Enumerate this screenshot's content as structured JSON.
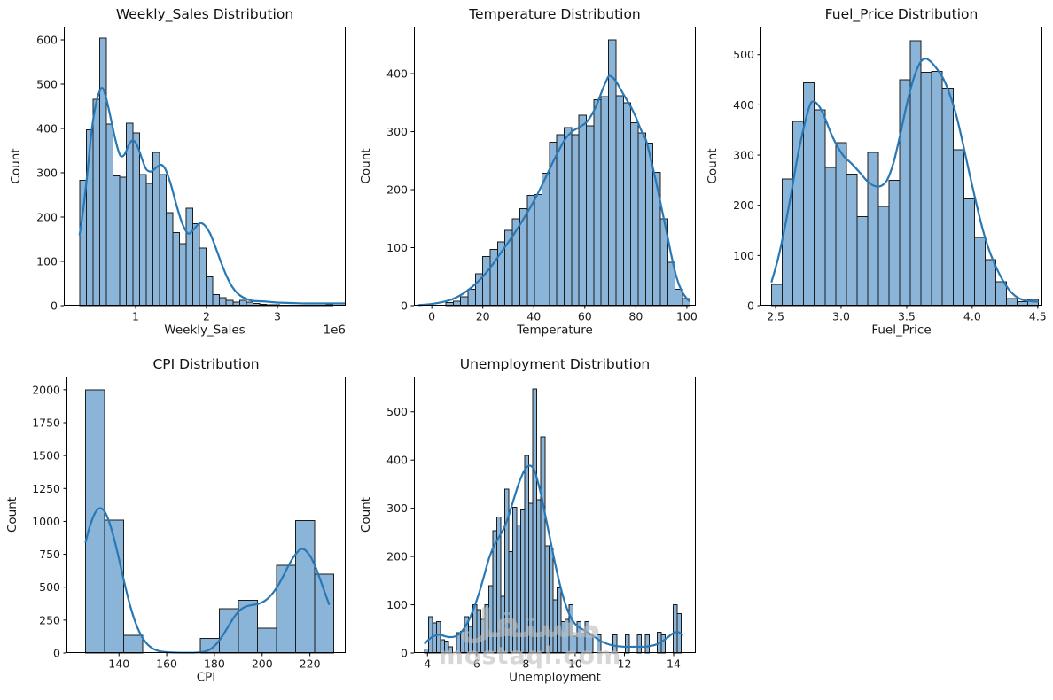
{
  "figure": {
    "background": "#ffffff"
  },
  "colors": {
    "bar_fill": "#8ab4d8",
    "bar_edge": "#1b1b1b",
    "kde": "#2878b5",
    "spine": "#000000",
    "text": "#1a1a1a"
  },
  "watermark": {
    "line1": "مستقل",
    "line2": "mostaql.com"
  },
  "chart_data": [
    {
      "id": "weekly-sales",
      "type": "bar",
      "subtype": "histogram-with-kde",
      "title": "Weekly_Sales Distribution",
      "xlabel": "Weekly_Sales",
      "ylabel": "Count",
      "x_offset_label": "1e6",
      "grid": false,
      "legend": null,
      "xlim": [
        -0.0125,
        3.9625
      ],
      "ylim": [
        0,
        630
      ],
      "xticks": {
        "values": [
          1,
          2,
          3
        ],
        "labels": [
          "1",
          "2",
          "3"
        ]
      },
      "yticks": {
        "values": [
          0,
          100,
          200,
          300,
          400,
          500,
          600
        ],
        "labels": [
          "0",
          "100",
          "200",
          "300",
          "400",
          "500",
          "600"
        ]
      },
      "bins": {
        "start": 0.21,
        "width": 0.094
      },
      "values": [
        283,
        397,
        466,
        604,
        410,
        293,
        290,
        412,
        390,
        296,
        276,
        346,
        296,
        210,
        165,
        140,
        220,
        185,
        130,
        65,
        25,
        18,
        12,
        8,
        12,
        8,
        5,
        3,
        2,
        2,
        1,
        1,
        1,
        1,
        1,
        1,
        1,
        2
      ],
      "kde": [
        [
          0.21,
          160
        ],
        [
          0.26,
          215
        ],
        [
          0.32,
          300
        ],
        [
          0.38,
          395
        ],
        [
          0.44,
          455
        ],
        [
          0.5,
          487
        ],
        [
          0.54,
          490
        ],
        [
          0.58,
          472
        ],
        [
          0.64,
          430
        ],
        [
          0.7,
          385
        ],
        [
          0.76,
          348
        ],
        [
          0.8,
          337
        ],
        [
          0.85,
          343
        ],
        [
          0.9,
          362
        ],
        [
          0.95,
          373
        ],
        [
          1.0,
          368
        ],
        [
          1.05,
          350
        ],
        [
          1.1,
          327
        ],
        [
          1.15,
          308
        ],
        [
          1.22,
          303
        ],
        [
          1.3,
          313
        ],
        [
          1.36,
          318
        ],
        [
          1.42,
          308
        ],
        [
          1.5,
          272
        ],
        [
          1.58,
          225
        ],
        [
          1.66,
          185
        ],
        [
          1.74,
          163
        ],
        [
          1.82,
          172
        ],
        [
          1.9,
          186
        ],
        [
          1.97,
          182
        ],
        [
          2.05,
          163
        ],
        [
          2.12,
          135
        ],
        [
          2.2,
          100
        ],
        [
          2.28,
          68
        ],
        [
          2.36,
          43
        ],
        [
          2.45,
          26
        ],
        [
          2.55,
          16
        ],
        [
          2.65,
          11
        ],
        [
          2.75,
          10
        ],
        [
          2.85,
          9
        ],
        [
          3.0,
          7
        ],
        [
          3.2,
          6
        ],
        [
          3.4,
          5
        ],
        [
          3.6,
          5
        ],
        [
          3.8,
          5
        ],
        [
          3.95,
          5
        ]
      ]
    },
    {
      "id": "temperature",
      "type": "bar",
      "subtype": "histogram-with-kde",
      "title": "Temperature Distribution",
      "xlabel": "Temperature",
      "ylabel": "Count",
      "x_offset_label": null,
      "grid": false,
      "legend": null,
      "xlim": [
        -7,
        103.5
      ],
      "ylim": [
        0,
        481
      ],
      "xticks": {
        "values": [
          0,
          20,
          40,
          60,
          80,
          100
        ],
        "labels": [
          "0",
          "20",
          "40",
          "60",
          "80",
          "100"
        ]
      },
      "yticks": {
        "values": [
          0,
          100,
          200,
          300,
          400
        ],
        "labels": [
          "0",
          "100",
          "200",
          "300",
          "400"
        ]
      },
      "bins": {
        "start": 5.5,
        "width": 2.9
      },
      "values": [
        5,
        8,
        15,
        28,
        55,
        85,
        97,
        110,
        130,
        150,
        167,
        190,
        192,
        228,
        282,
        295,
        307,
        295,
        328,
        310,
        355,
        360,
        458,
        362,
        350,
        315,
        298,
        280,
        230,
        150,
        75,
        28,
        12
      ],
      "kde": [
        [
          -5,
          1
        ],
        [
          0,
          3
        ],
        [
          4,
          6
        ],
        [
          8,
          11
        ],
        [
          12,
          20
        ],
        [
          16,
          33
        ],
        [
          20,
          50
        ],
        [
          24,
          72
        ],
        [
          28,
          97
        ],
        [
          32,
          122
        ],
        [
          36,
          150
        ],
        [
          40,
          180
        ],
        [
          44,
          215
        ],
        [
          48,
          252
        ],
        [
          52,
          285
        ],
        [
          55,
          300
        ],
        [
          58,
          308
        ],
        [
          61,
          318
        ],
        [
          64,
          340
        ],
        [
          67,
          373
        ],
        [
          69,
          393
        ],
        [
          70,
          396
        ],
        [
          72,
          388
        ],
        [
          74,
          373
        ],
        [
          76,
          358
        ],
        [
          78,
          343
        ],
        [
          80,
          325
        ],
        [
          82,
          303
        ],
        [
          84,
          285
        ],
        [
          86,
          250
        ],
        [
          88,
          212
        ],
        [
          90,
          170
        ],
        [
          92,
          128
        ],
        [
          94,
          85
        ],
        [
          96,
          48
        ],
        [
          98,
          25
        ],
        [
          100,
          12
        ],
        [
          101,
          8
        ]
      ]
    },
    {
      "id": "fuel-price",
      "type": "bar",
      "subtype": "histogram-with-kde",
      "title": "Fuel_Price Distribution",
      "xlabel": "Fuel_Price",
      "ylabel": "Count",
      "x_offset_label": null,
      "grid": false,
      "legend": null,
      "xlim": [
        2.385,
        4.535
      ],
      "ylim": [
        0,
        556
      ],
      "xticks": {
        "values": [
          2.5,
          3.0,
          3.5,
          4.0,
          4.5
        ],
        "labels": [
          "2.5",
          "3.0",
          "3.5",
          "4.0",
          "4.5"
        ]
      },
      "yticks": {
        "values": [
          0,
          100,
          200,
          300,
          400,
          500
        ],
        "labels": [
          "0",
          "100",
          "200",
          "300",
          "400",
          "500"
        ]
      },
      "bins": {
        "start": 2.47,
        "width": 0.0814
      },
      "values": [
        42,
        252,
        367,
        444,
        390,
        275,
        325,
        262,
        177,
        305,
        198,
        250,
        450,
        528,
        465,
        467,
        433,
        311,
        213,
        136,
        92,
        48,
        14,
        8,
        12
      ],
      "kde": [
        [
          2.47,
          48
        ],
        [
          2.52,
          95
        ],
        [
          2.57,
          155
        ],
        [
          2.62,
          225
        ],
        [
          2.67,
          300
        ],
        [
          2.72,
          360
        ],
        [
          2.76,
          398
        ],
        [
          2.79,
          407
        ],
        [
          2.83,
          398
        ],
        [
          2.87,
          378
        ],
        [
          2.92,
          345
        ],
        [
          2.97,
          318
        ],
        [
          3.02,
          298
        ],
        [
          3.08,
          283
        ],
        [
          3.14,
          266
        ],
        [
          3.2,
          248
        ],
        [
          3.25,
          239
        ],
        [
          3.3,
          238
        ],
        [
          3.35,
          250
        ],
        [
          3.4,
          285
        ],
        [
          3.45,
          340
        ],
        [
          3.5,
          400
        ],
        [
          3.55,
          450
        ],
        [
          3.6,
          483
        ],
        [
          3.64,
          492
        ],
        [
          3.68,
          487
        ],
        [
          3.73,
          472
        ],
        [
          3.78,
          452
        ],
        [
          3.83,
          420
        ],
        [
          3.88,
          378
        ],
        [
          3.93,
          322
        ],
        [
          3.98,
          262
        ],
        [
          4.03,
          205
        ],
        [
          4.08,
          152
        ],
        [
          4.13,
          110
        ],
        [
          4.18,
          78
        ],
        [
          4.23,
          52
        ],
        [
          4.28,
          32
        ],
        [
          4.33,
          19
        ],
        [
          4.38,
          12
        ],
        [
          4.44,
          9
        ],
        [
          4.5,
          8
        ]
      ]
    },
    {
      "id": "cpi",
      "type": "bar",
      "subtype": "histogram-with-kde",
      "title": "CPI Distribution",
      "xlabel": "CPI",
      "ylabel": "Count",
      "x_offset_label": null,
      "grid": false,
      "legend": null,
      "xlim": [
        118,
        235
      ],
      "ylim": [
        0,
        2100
      ],
      "xticks": {
        "values": [
          140,
          160,
          180,
          200,
          220
        ],
        "labels": [
          "140",
          "160",
          "180",
          "200",
          "220"
        ]
      },
      "yticks": {
        "values": [
          0,
          250,
          500,
          750,
          1000,
          1250,
          1500,
          1750,
          2000
        ],
        "labels": [
          "0",
          "250",
          "500",
          "750",
          "1000",
          "1250",
          "1500",
          "1750",
          "2000"
        ]
      },
      "bins": {
        "start": 126,
        "width": 8
      },
      "values": [
        2000,
        1010,
        135,
        0,
        0,
        0,
        110,
        335,
        400,
        190,
        665,
        1005,
        600
      ],
      "kde": [
        [
          126,
          845
        ],
        [
          128,
          975
        ],
        [
          130,
          1065
        ],
        [
          132,
          1100
        ],
        [
          134,
          1075
        ],
        [
          136,
          990
        ],
        [
          138,
          865
        ],
        [
          140,
          715
        ],
        [
          142,
          555
        ],
        [
          144,
          405
        ],
        [
          146,
          280
        ],
        [
          148,
          182
        ],
        [
          150,
          112
        ],
        [
          152,
          65
        ],
        [
          154,
          36
        ],
        [
          156,
          19
        ],
        [
          158,
          10
        ],
        [
          161,
          5
        ],
        [
          164,
          3
        ],
        [
          168,
          2
        ],
        [
          172,
          3
        ],
        [
          175,
          8
        ],
        [
          177,
          18
        ],
        [
          179,
          38
        ],
        [
          181,
          72
        ],
        [
          183,
          120
        ],
        [
          185,
          178
        ],
        [
          187,
          238
        ],
        [
          189,
          292
        ],
        [
          191,
          330
        ],
        [
          193,
          352
        ],
        [
          195,
          362
        ],
        [
          197,
          368
        ],
        [
          199,
          377
        ],
        [
          201,
          395
        ],
        [
          203,
          425
        ],
        [
          205,
          468
        ],
        [
          207,
          523
        ],
        [
          209,
          590
        ],
        [
          211,
          662
        ],
        [
          213,
          725
        ],
        [
          215,
          772
        ],
        [
          216,
          788
        ],
        [
          217,
          790
        ],
        [
          218,
          783
        ],
        [
          220,
          740
        ],
        [
          222,
          668
        ],
        [
          224,
          575
        ],
        [
          226,
          472
        ],
        [
          228,
          372
        ]
      ]
    },
    {
      "id": "unemployment",
      "type": "bar",
      "subtype": "histogram-with-kde",
      "title": "Unemployment Distribution",
      "xlabel": "Unemployment",
      "ylabel": "Count",
      "x_offset_label": null,
      "grid": false,
      "legend": null,
      "xlim": [
        3.45,
        14.9
      ],
      "ylim": [
        0,
        573
      ],
      "xticks": {
        "values": [
          4,
          6,
          8,
          10,
          12,
          14
        ],
        "labels": [
          "4",
          "6",
          "8",
          "10",
          "12",
          "14"
        ]
      },
      "yticks": {
        "values": [
          0,
          100,
          200,
          300,
          400,
          500
        ],
        "labels": [
          "0",
          "100",
          "200",
          "300",
          "400",
          "500"
        ]
      },
      "bins": {
        "start": 3.88,
        "width": 0.163
      },
      "values": [
        8,
        75,
        62,
        65,
        28,
        25,
        13,
        0,
        42,
        45,
        75,
        55,
        100,
        90,
        70,
        100,
        140,
        253,
        282,
        118,
        340,
        210,
        302,
        265,
        297,
        410,
        310,
        547,
        318,
        448,
        222,
        218,
        110,
        135,
        65,
        70,
        100,
        35,
        65,
        40,
        65,
        38,
        0,
        38,
        0,
        0,
        0,
        38,
        0,
        0,
        38,
        0,
        0,
        38,
        0,
        38,
        0,
        0,
        43,
        38,
        0,
        0,
        100,
        82
      ],
      "kde": [
        [
          3.9,
          20
        ],
        [
          4.1,
          30
        ],
        [
          4.3,
          36
        ],
        [
          4.5,
          38
        ],
        [
          4.7,
          35
        ],
        [
          4.9,
          33
        ],
        [
          5.1,
          34
        ],
        [
          5.3,
          40
        ],
        [
          5.5,
          52
        ],
        [
          5.7,
          70
        ],
        [
          5.9,
          95
        ],
        [
          6.1,
          125
        ],
        [
          6.3,
          160
        ],
        [
          6.5,
          196
        ],
        [
          6.7,
          222
        ],
        [
          6.9,
          240
        ],
        [
          7.1,
          258
        ],
        [
          7.3,
          285
        ],
        [
          7.5,
          318
        ],
        [
          7.7,
          350
        ],
        [
          7.9,
          375
        ],
        [
          8.05,
          386
        ],
        [
          8.2,
          388
        ],
        [
          8.35,
          378
        ],
        [
          8.5,
          352
        ],
        [
          8.65,
          320
        ],
        [
          8.8,
          282
        ],
        [
          9.0,
          232
        ],
        [
          9.2,
          182
        ],
        [
          9.4,
          138
        ],
        [
          9.6,
          102
        ],
        [
          9.8,
          76
        ],
        [
          10.0,
          60
        ],
        [
          10.2,
          52
        ],
        [
          10.4,
          46
        ],
        [
          10.6,
          40
        ],
        [
          10.8,
          33
        ],
        [
          11.0,
          26
        ],
        [
          11.3,
          19
        ],
        [
          11.6,
          15
        ],
        [
          12.0,
          13
        ],
        [
          12.4,
          13
        ],
        [
          12.8,
          13
        ],
        [
          13.1,
          15
        ],
        [
          13.4,
          20
        ],
        [
          13.7,
          30
        ],
        [
          13.95,
          40
        ],
        [
          14.15,
          44
        ],
        [
          14.35,
          38
        ]
      ]
    }
  ]
}
